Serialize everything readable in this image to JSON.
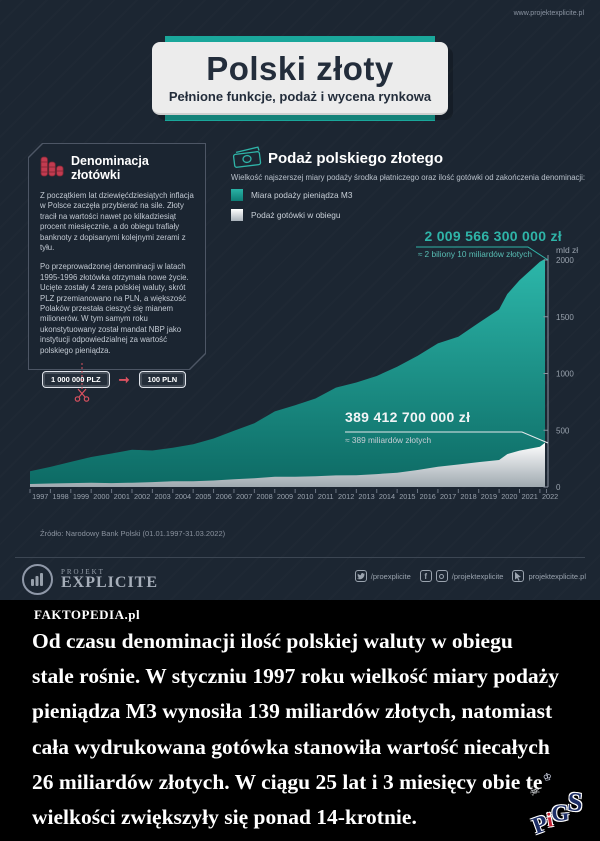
{
  "page": {
    "site_url": "www.projektexplicite.pl"
  },
  "header": {
    "title": "Polski złoty",
    "subtitle": "Pełnione funkcje, podaż i wycena rynkowa"
  },
  "denomination_panel": {
    "title": "Denominacja złotówki",
    "icon": "coin-stacks-icon",
    "paragraph1": "Z początkiem lat dziewięćdziesiątych inflacja w Polsce zaczęła przybierać na sile. Złoty tracił na wartości nawet po kilkadziesiąt procent miesięcznie, a do obiegu trafiały banknoty z dopisanymi kolejnymi zerami z tyłu.",
    "paragraph2": "Po przeprowadzonej denominacji w latach 1995-1996 złotówka otrzymała nowe życie. Ucięte zostały 4 zera polskiej waluty, skrót PLZ przemianowano na PLN, a większość Polaków przestała cieszyć się mianem milionerów. W tym samym roku ukonstytuowany został mandat NBP jako instytucji odpowiedzialnej za wartość polskiego pieniądza.",
    "banknote_old": "1 000 000 PLZ",
    "banknote_new": "100 PLN"
  },
  "supply_panel": {
    "title": "Podaż polskiego złotego",
    "icon": "banknotes-icon",
    "subtitle": "Wielkość najszerszej miary podaży środka płatniczego oraz ilość gotówki od zakończenia denominacji:",
    "legend": [
      {
        "label": "Miara podaży pieniądza M3",
        "color": "#1ba99d"
      },
      {
        "label": "Podaż gotówki w obiegu",
        "color": "#ffffff"
      }
    ]
  },
  "chart_data": {
    "type": "area",
    "title": "Podaż polskiego złotego",
    "ylabel": "mld zł",
    "ylim": [
      0,
      2100
    ],
    "yticks": [
      0,
      500,
      1000,
      1500,
      2000
    ],
    "categories": [
      "1997",
      "1998",
      "1999",
      "2000",
      "2001",
      "2002",
      "2003",
      "2004",
      "2005",
      "2006",
      "2007",
      "2008",
      "2009",
      "2010",
      "2011",
      "2012",
      "2013",
      "2014",
      "2015",
      "2016",
      "2017",
      "2018",
      "2019",
      "2020",
      "2021",
      "2022"
    ],
    "x": [
      1997,
      1998,
      1999,
      2000,
      2001,
      2002,
      2003,
      2004,
      2005,
      2006,
      2007,
      2008,
      2009,
      2010,
      2011,
      2012,
      2013,
      2014,
      2015,
      2016,
      2017,
      2018,
      2019,
      2020,
      2020.4,
      2021,
      2022,
      2022.25
    ],
    "series": [
      {
        "name": "Miara podaży pieniądza M3",
        "color": "#1ba99d",
        "values": [
          139,
          177,
          221,
          264,
          295,
          329,
          322,
          345,
          377,
          427,
          495,
          561,
          666,
          720,
          780,
          876,
          921,
          978,
          1059,
          1155,
          1265,
          1324,
          1446,
          1565,
          1700,
          1822,
          1985,
          2009.6
        ]
      },
      {
        "name": "Podaż gotówki w obiegu",
        "color": "#ffffff",
        "values": [
          26,
          31,
          34,
          38,
          34,
          38,
          43,
          50,
          50,
          57,
          68,
          77,
          90,
          90,
          95,
          102,
          103,
          114,
          126,
          150,
          179,
          198,
          219,
          238,
          290,
          321,
          355,
          389.4
        ]
      }
    ],
    "callouts": [
      {
        "value": "2 009 566 300 000 zł",
        "approx": "≈ 2 biliony 10 miliardów złotych"
      },
      {
        "value": "389 412 700 000 zł",
        "approx": "≈ 389 miliardów złotych"
      }
    ]
  },
  "source": "Źródło: Narodowy Bank Polski (01.01.1997-31.03.2022)",
  "footer": {
    "brand_top": "PROJEKT",
    "brand_bottom": "EXPLICITE",
    "twitter_handle": "/proexplicite",
    "social_handle": "/projektexplicite",
    "website": "projektexplicite.pl"
  },
  "caption": {
    "source_label": "FAKTOPEDIA.pl",
    "lines": [
      "Od czasu denominacji ilość polskiej waluty w obiegu",
      "stale rośnie. W styczniu 1997 roku wielkość miary podaży",
      "pieniądza M3 wynosiła 139 miliardów złotych, natomiast",
      "cała wydrukowana gotówka stanowiła wartość niecałych",
      "26 miliardów złotych. W ciągu 25 lat i 3 miesięcy obie te",
      "wielkości zwiększyły się ponad 14-krotnie."
    ],
    "watermark": {
      "p": "P",
      "i": "i",
      "g": "G",
      "s": "S"
    }
  }
}
